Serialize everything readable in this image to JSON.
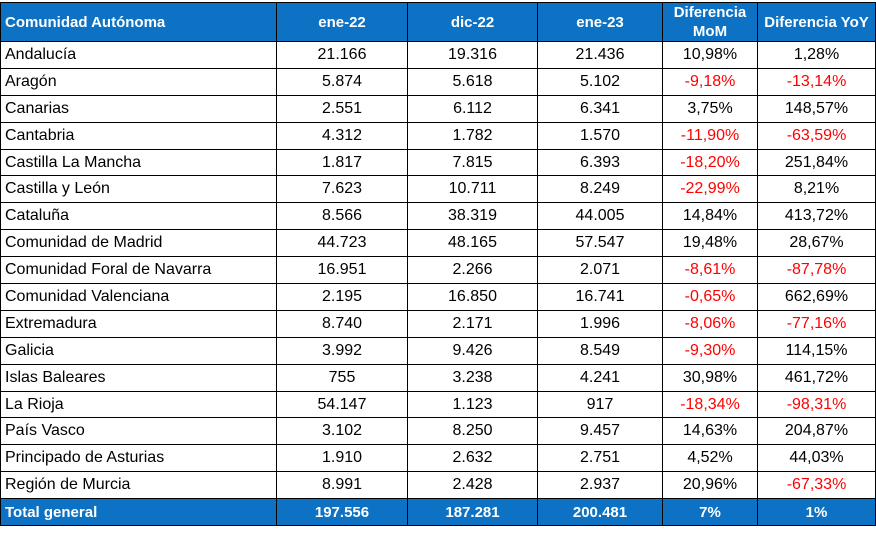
{
  "headers": {
    "region": "Comunidad Autónoma",
    "c1": "ene-22",
    "c2": "dic-22",
    "c3": "ene-23",
    "mom": "Diferencia MoM",
    "yoy": "Diferencia YoY"
  },
  "rows": [
    {
      "name": "Andalucía",
      "v1": "21.166",
      "v2": "19.316",
      "v3": "21.436",
      "mom": "10,98%",
      "yoy": "1,28%",
      "mom_neg": false,
      "yoy_neg": false
    },
    {
      "name": "Aragón",
      "v1": "5.874",
      "v2": "5.618",
      "v3": "5.102",
      "mom": "-9,18%",
      "yoy": "-13,14%",
      "mom_neg": true,
      "yoy_neg": true
    },
    {
      "name": "Canarias",
      "v1": "2.551",
      "v2": "6.112",
      "v3": "6.341",
      "mom": "3,75%",
      "yoy": "148,57%",
      "mom_neg": false,
      "yoy_neg": false
    },
    {
      "name": "Cantabria",
      "v1": "4.312",
      "v2": "1.782",
      "v3": "1.570",
      "mom": "-11,90%",
      "yoy": "-63,59%",
      "mom_neg": true,
      "yoy_neg": true
    },
    {
      "name": "Castilla La Mancha",
      "v1": "1.817",
      "v2": "7.815",
      "v3": "6.393",
      "mom": "-18,20%",
      "yoy": "251,84%",
      "mom_neg": true,
      "yoy_neg": false
    },
    {
      "name": "Castilla y León",
      "v1": "7.623",
      "v2": "10.711",
      "v3": "8.249",
      "mom": "-22,99%",
      "yoy": "8,21%",
      "mom_neg": true,
      "yoy_neg": false
    },
    {
      "name": "Cataluña",
      "v1": "8.566",
      "v2": "38.319",
      "v3": "44.005",
      "mom": "14,84%",
      "yoy": "413,72%",
      "mom_neg": false,
      "yoy_neg": false
    },
    {
      "name": "Comunidad de Madrid",
      "v1": "44.723",
      "v2": "48.165",
      "v3": "57.547",
      "mom": "19,48%",
      "yoy": "28,67%",
      "mom_neg": false,
      "yoy_neg": false
    },
    {
      "name": "Comunidad Foral de Navarra",
      "v1": "16.951",
      "v2": "2.266",
      "v3": "2.071",
      "mom": "-8,61%",
      "yoy": "-87,78%",
      "mom_neg": true,
      "yoy_neg": true
    },
    {
      "name": "Comunidad Valenciana",
      "v1": "2.195",
      "v2": "16.850",
      "v3": "16.741",
      "mom": "-0,65%",
      "yoy": "662,69%",
      "mom_neg": true,
      "yoy_neg": false
    },
    {
      "name": "Extremadura",
      "v1": "8.740",
      "v2": "2.171",
      "v3": "1.996",
      "mom": "-8,06%",
      "yoy": "-77,16%",
      "mom_neg": true,
      "yoy_neg": true
    },
    {
      "name": "Galicia",
      "v1": "3.992",
      "v2": "9.426",
      "v3": "8.549",
      "mom": "-9,30%",
      "yoy": "114,15%",
      "mom_neg": true,
      "yoy_neg": false
    },
    {
      "name": "Islas Baleares",
      "v1": "755",
      "v2": "3.238",
      "v3": "4.241",
      "mom": "30,98%",
      "yoy": "461,72%",
      "mom_neg": false,
      "yoy_neg": false
    },
    {
      "name": "La Rioja",
      "v1": "54.147",
      "v2": "1.123",
      "v3": "917",
      "mom": "-18,34%",
      "yoy": "-98,31%",
      "mom_neg": true,
      "yoy_neg": true
    },
    {
      "name": "País Vasco",
      "v1": "3.102",
      "v2": "8.250",
      "v3": "9.457",
      "mom": "14,63%",
      "yoy": "204,87%",
      "mom_neg": false,
      "yoy_neg": false
    },
    {
      "name": "Principado de Asturias",
      "v1": "1.910",
      "v2": "2.632",
      "v3": "2.751",
      "mom": "4,52%",
      "yoy": "44,03%",
      "mom_neg": false,
      "yoy_neg": false
    },
    {
      "name": "Región de Murcia",
      "v1": "8.991",
      "v2": "2.428",
      "v3": "2.937",
      "mom": "20,96%",
      "yoy": "-67,33%",
      "mom_neg": false,
      "yoy_neg": true
    }
  ],
  "total": {
    "name": "Total general",
    "v1": "197.556",
    "v2": "187.281",
    "v3": "200.481",
    "mom": "7%",
    "yoy": "1%"
  },
  "colors": {
    "header_bg": "#0d72c4",
    "header_text": "#ffffff",
    "negative": "#ff0000",
    "border": "#000000"
  }
}
